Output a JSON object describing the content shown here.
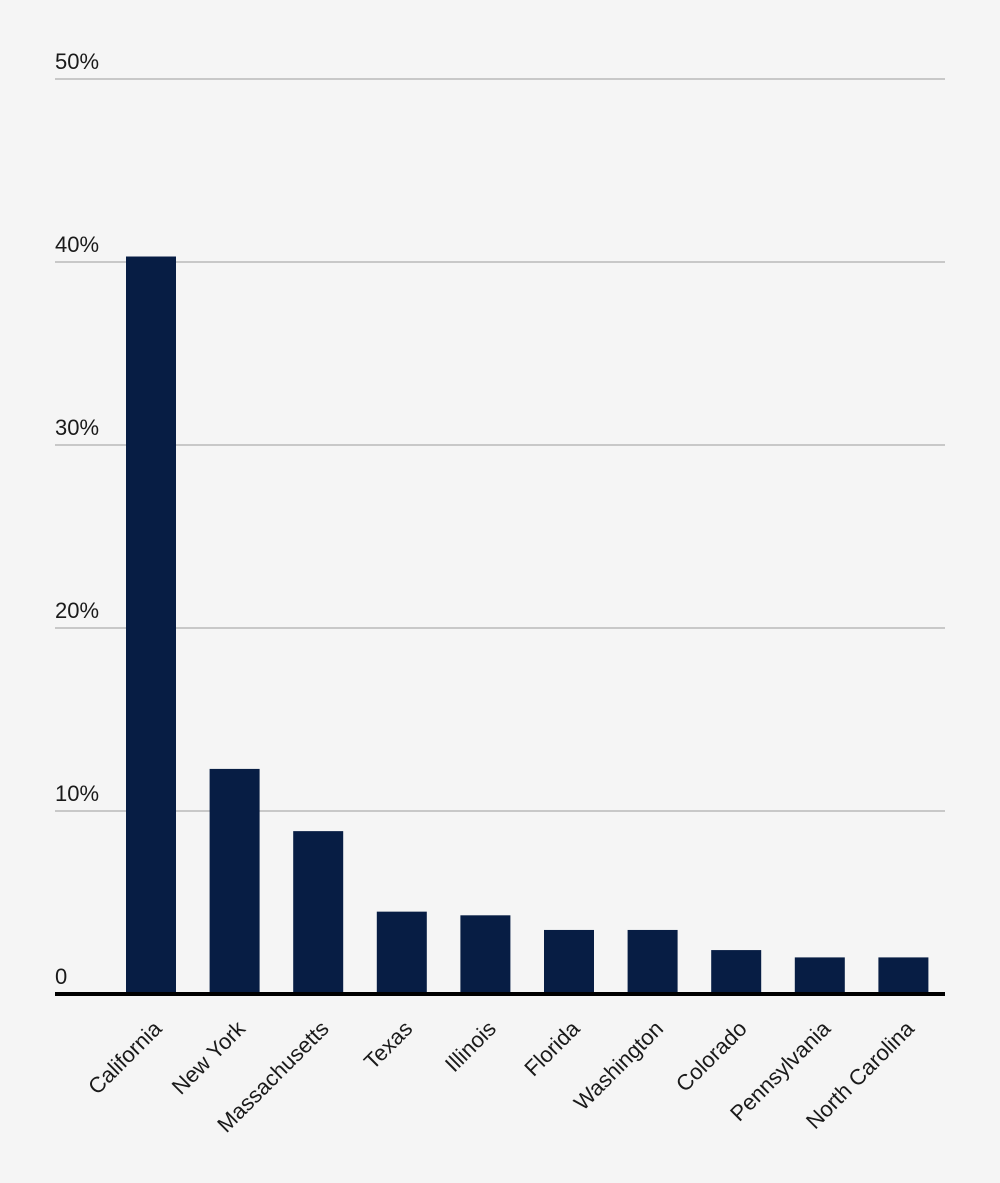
{
  "colors": {
    "background": "#f5f5f5",
    "bar": "#071d44",
    "gridline": "#c8c8c8",
    "axis": "#000000",
    "text": "#1a1a1a"
  },
  "chart_data": {
    "type": "bar",
    "title": "",
    "xlabel": "",
    "ylabel": "",
    "ylim": [
      0,
      50
    ],
    "yticks": [
      {
        "value": 0,
        "label": "0"
      },
      {
        "value": 10,
        "label": "10%"
      },
      {
        "value": 20,
        "label": "20%"
      },
      {
        "value": 30,
        "label": "30%"
      },
      {
        "value": 40,
        "label": "40%"
      },
      {
        "value": 50,
        "label": "50%"
      }
    ],
    "categories": [
      "California",
      "New York",
      "Massachusetts",
      "Texas",
      "Illinois",
      "Florida",
      "Washington",
      "Colorado",
      "Pennsylvania",
      "North Carolina"
    ],
    "values": [
      40.3,
      12.3,
      8.9,
      4.5,
      4.3,
      3.5,
      3.5,
      2.4,
      2.0,
      2.0
    ],
    "grid": true,
    "legend": "none"
  }
}
